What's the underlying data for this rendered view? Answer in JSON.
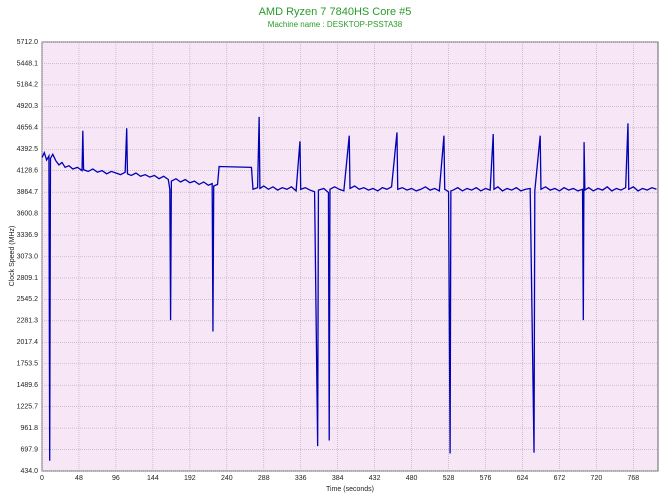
{
  "chart_data": {
    "type": "line",
    "title": "AMD Ryzen 7 7840HS Core #5",
    "subtitle": "Machine name : DESKTOP-PSSTA38",
    "xlabel": "Time (seconds)",
    "ylabel": "Clock Speed (MHz)",
    "xlim": [
      0,
      800
    ],
    "ylim": [
      434,
      5712
    ],
    "xticks": [
      0,
      48,
      96,
      144,
      192,
      240,
      288,
      336,
      384,
      432,
      480,
      528,
      576,
      624,
      672,
      720,
      768
    ],
    "yticks": [
      {
        "value": 434,
        "label": "434.0"
      },
      697.9,
      961.8,
      1225.7,
      1489.6,
      1753.5,
      2017.4,
      2281.3,
      2545.2,
      2809.1,
      {
        "value": 3073,
        "label": "3073.0"
      },
      3336.9,
      3600.8,
      3864.7,
      4128.6,
      4392.5,
      4656.4,
      4920.3,
      5184.2,
      5448.1,
      {
        "value": 5712,
        "label": "5712.0"
      }
    ],
    "grid": true,
    "x": [
      0,
      3,
      6,
      9,
      10,
      11,
      14,
      18,
      22,
      26,
      30,
      35,
      40,
      46,
      52,
      53,
      54,
      60,
      66,
      72,
      78,
      84,
      90,
      96,
      102,
      108,
      110,
      111,
      116,
      122,
      128,
      134,
      140,
      146,
      152,
      158,
      164,
      166,
      167,
      168,
      174,
      180,
      186,
      192,
      198,
      204,
      210,
      216,
      221,
      222,
      223,
      228,
      230,
      272,
      274,
      280,
      282,
      283,
      288,
      294,
      300,
      306,
      312,
      318,
      324,
      330,
      335,
      336,
      342,
      348,
      354,
      358,
      359,
      366,
      372,
      373,
      374,
      380,
      386,
      392,
      399,
      400,
      406,
      412,
      418,
      424,
      430,
      436,
      442,
      448,
      454,
      461,
      462,
      468,
      474,
      480,
      486,
      492,
      498,
      504,
      510,
      516,
      522,
      523,
      528,
      530,
      531,
      534,
      540,
      546,
      552,
      558,
      564,
      570,
      576,
      582,
      586,
      587,
      592,
      598,
      604,
      610,
      616,
      622,
      628,
      634,
      639,
      640,
      647,
      648,
      654,
      660,
      666,
      672,
      678,
      684,
      690,
      696,
      702,
      703,
      704,
      705,
      710,
      716,
      722,
      728,
      734,
      740,
      746,
      752,
      758,
      761,
      762,
      768,
      774,
      780,
      786,
      792,
      798
    ],
    "series": [
      {
        "color": "#0000b4",
        "values": [
          4290,
          4350,
          4260,
          4310,
          560,
          4280,
          4330,
          4250,
          4200,
          4230,
          4170,
          4190,
          4150,
          4170,
          4130,
          4620,
          4140,
          4120,
          4150,
          4110,
          4130,
          4090,
          4120,
          4100,
          4080,
          4110,
          4650,
          4090,
          4070,
          4100,
          4060,
          4080,
          4050,
          4070,
          4030,
          4060,
          4020,
          3900,
          2290,
          4000,
          4030,
          3990,
          4020,
          3980,
          4000,
          3960,
          3990,
          3950,
          3970,
          2150,
          3940,
          3960,
          4180,
          4170,
          3900,
          3920,
          4790,
          3910,
          3940,
          3900,
          3930,
          3890,
          3920,
          3900,
          3930,
          3880,
          4490,
          3900,
          3920,
          3890,
          3870,
          740,
          3890,
          3910,
          3860,
          810,
          3900,
          3930,
          3900,
          3880,
          4560,
          3910,
          3940,
          3900,
          3920,
          3890,
          3910,
          3880,
          3920,
          3900,
          3930,
          4600,
          3900,
          3920,
          3890,
          3910,
          3880,
          3900,
          3930,
          3890,
          3910,
          3880,
          4560,
          3900,
          3870,
          650,
          3880,
          3890,
          3920,
          3880,
          3910,
          3890,
          3920,
          3880,
          3910,
          3890,
          4580,
          3900,
          3930,
          3880,
          3910,
          3890,
          3920,
          3880,
          3900,
          3910,
          660,
          3880,
          4560,
          3900,
          3930,
          3890,
          3910,
          3880,
          3920,
          3890,
          3910,
          3880,
          3900,
          2290,
          4480,
          3890,
          3920,
          3880,
          3910,
          3890,
          3930,
          3880,
          3910,
          3890,
          3920,
          4710,
          3900,
          3930,
          3880,
          3910,
          3890,
          3920,
          3900
        ]
      }
    ]
  }
}
